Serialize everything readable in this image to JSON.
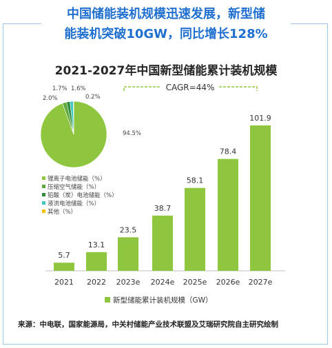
{
  "headline": {
    "line1": "中国储能装机规模迅速发展，新型储",
    "line2": "能装机突破10GW，同比增长128%"
  },
  "chart_data": {
    "type": "bar",
    "title": "2021-2027年中国新型储能累计装机规模",
    "categories": [
      "2021",
      "2022",
      "2023e",
      "2024e",
      "2025e",
      "2026e",
      "2027e"
    ],
    "values": [
      5.7,
      13.1,
      23.5,
      38.7,
      58.1,
      78.4,
      101.9
    ],
    "value_labels": [
      "5.7",
      "13.1",
      "23.5",
      "38.7",
      "58.1",
      "78.4",
      "101.9"
    ],
    "ylim": [
      0,
      101.9
    ],
    "bar_color": "#8ec63f",
    "legend": {
      "label": "新型储能累计装机规模（GW）",
      "position": "bottom"
    },
    "annotation": "CAGR=44%",
    "inset_pie": {
      "type": "pie",
      "slices": [
        {
          "name": "锂离子电池储能（%）",
          "value": 94.5,
          "label": "94.5%",
          "color": "#8ec63f"
        },
        {
          "name": "压缩空气储能（%）",
          "value": 2.0,
          "label": "2.0%",
          "color": "#5da83a"
        },
        {
          "name": "铅酸（炭）电池储能（%）",
          "value": 1.7,
          "label": "1.7%",
          "color": "#2f8a3a"
        },
        {
          "name": "液流电池储能（%）",
          "value": 1.6,
          "label": "1.6%",
          "color": "#3cc9c0"
        },
        {
          "name": "其他（%）",
          "value": 0.2,
          "label": "0.2%",
          "color": "#f2c200"
        }
      ]
    }
  },
  "source": "来源：中电联，国家能源局，中关村储能产业技术联盟及艾瑞研究院自主研究绘制"
}
